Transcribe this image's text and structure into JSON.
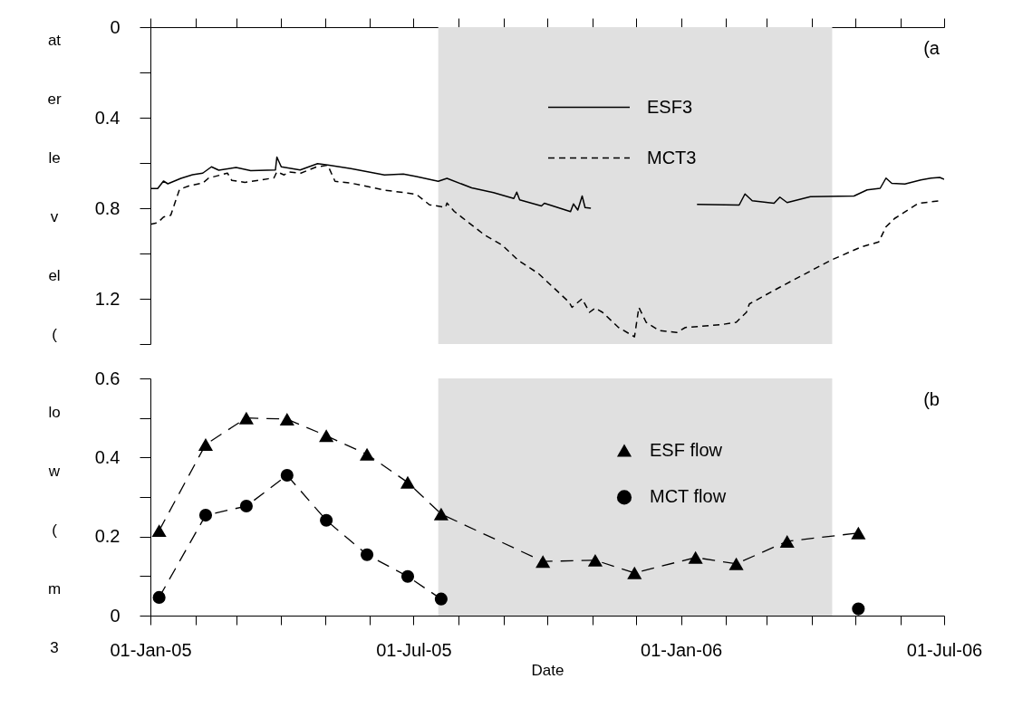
{
  "chart_data": [
    {
      "type": "line",
      "ylabel": "at\ner\nle\nv\nel\n(",
      "annotations": [
        "(a"
      ],
      "legend": "top",
      "tick_labels": "y",
      "xlim": [
        "2005-01-01",
        "2006-07-01"
      ],
      "xticks": [
        {
          "value": "2005-01-01",
          "label": null
        },
        {
          "value": "2005-02-01",
          "label": null
        },
        {
          "value": "2005-03-01",
          "label": null
        },
        {
          "value": "2005-04-01",
          "label": null
        },
        {
          "value": "2005-05-01",
          "label": null
        },
        {
          "value": "2005-06-01",
          "label": null
        },
        {
          "value": "2005-07-01",
          "label": null
        },
        {
          "value": "2005-08-01",
          "label": null
        },
        {
          "value": "2005-09-01",
          "label": null
        },
        {
          "value": "2005-10-01",
          "label": null
        },
        {
          "value": "2005-11-01",
          "label": null
        },
        {
          "value": "2005-12-01",
          "label": null
        },
        {
          "value": "2006-01-01",
          "label": null
        },
        {
          "value": "2006-02-01",
          "label": null
        },
        {
          "value": "2006-03-01",
          "label": null
        },
        {
          "value": "2006-04-01",
          "label": null
        },
        {
          "value": "2006-05-01",
          "label": null
        },
        {
          "value": "2006-06-01",
          "label": null
        },
        {
          "value": "2006-07-01",
          "label": null
        }
      ],
      "ylim": [
        1.4,
        0
      ],
      "yticks": [
        0,
        {
          "value": 0.2,
          "label": null
        },
        0.4,
        {
          "value": 0.6,
          "label": null
        },
        0.8,
        {
          "value": 1.0,
          "label": null
        },
        1.2,
        {
          "value": 1.4,
          "label": null
        }
      ],
      "bands": [
        {
          "axis": "x",
          "from": "2005-07-18",
          "to": "2006-04-15",
          "color": "#e0e0e0"
        }
      ],
      "series": [
        {
          "name": "ESF3",
          "color": "#000000",
          "line_style": "solid",
          "x": [
            "2005-01-01",
            "2005-01-06",
            "2005-01-10",
            "2005-01-13",
            "2005-01-22",
            "2005-01-30",
            "2005-02-06",
            "2005-02-12",
            "2005-02-17",
            "2005-03-01",
            "2005-03-11",
            "2005-03-28",
            "2005-03-29",
            "2005-04-01",
            "2005-04-14",
            "2005-04-26",
            "2005-05-04",
            "2005-05-19",
            "2005-06-11",
            "2005-06-24",
            "2005-07-03",
            "2005-07-18",
            "2005-07-24",
            "2005-08-10",
            "2005-08-25",
            "2005-09-08",
            "2005-09-10",
            "2005-09-12",
            "2005-09-27",
            "2005-09-29",
            "2005-10-17",
            "2005-10-19",
            "2005-10-22",
            "2005-10-25",
            "2005-10-27",
            "2005-10-31",
            "2005-12-01",
            "2006-01-12",
            "2006-02-10",
            "2006-02-14",
            "2006-02-19",
            "2006-03-06",
            "2006-03-10",
            "2006-03-15",
            "2006-03-31",
            "2006-04-30",
            "2006-05-09",
            "2006-05-18",
            "2006-05-22",
            "2006-05-26",
            "2006-06-04",
            "2006-06-15",
            "2006-06-22",
            "2006-06-28",
            "2006-07-01"
          ],
          "values": [
            0.713,
            0.713,
            0.68,
            0.692,
            0.668,
            0.652,
            0.645,
            0.617,
            0.632,
            0.62,
            0.634,
            0.631,
            0.574,
            0.617,
            0.631,
            0.603,
            0.61,
            0.625,
            0.653,
            0.649,
            0.66,
            0.681,
            0.668,
            0.71,
            0.731,
            0.757,
            0.729,
            0.763,
            0.79,
            0.778,
            0.815,
            0.781,
            0.808,
            0.746,
            0.797,
            0.8,
            null,
            0.783,
            0.786,
            0.737,
            0.767,
            0.778,
            0.751,
            0.775,
            0.749,
            0.746,
            0.719,
            0.712,
            0.667,
            0.69,
            0.693,
            0.675,
            0.667,
            0.664,
            0.672
          ]
        },
        {
          "name": "MCT3",
          "color": "#000000",
          "line_style": "dashed",
          "x": [
            "2005-01-01",
            "2005-01-06",
            "2005-01-10",
            "2005-01-15",
            "2005-01-21",
            "2005-01-28",
            "2005-02-06",
            "2005-02-10",
            "2005-02-23",
            "2005-02-26",
            "2005-03-07",
            "2005-03-27",
            "2005-03-29",
            "2005-04-03",
            "2005-04-06",
            "2005-04-14",
            "2005-04-25",
            "2005-05-03",
            "2005-05-08",
            "2005-05-19",
            "2005-06-11",
            "2005-06-28",
            "2005-07-03",
            "2005-07-12",
            "2005-07-23",
            "2005-07-24",
            "2005-07-29",
            "2005-08-19",
            "2005-08-31",
            "2005-09-11",
            "2005-09-25",
            "2005-10-16",
            "2005-10-18",
            "2005-10-25",
            "2005-10-30",
            "2005-11-03",
            "2005-11-08",
            "2005-11-19",
            "2005-11-30",
            "2005-12-03",
            "2005-12-08",
            "2005-12-17",
            "2005-12-29",
            "2006-01-04",
            "2006-01-28",
            "2006-02-08",
            "2006-02-15",
            "2006-02-17",
            "2006-03-10",
            "2006-04-14",
            "2006-05-05",
            "2006-05-17",
            "2006-05-22",
            "2006-05-28",
            "2006-06-13",
            "2006-06-28"
          ],
          "values": [
            0.871,
            0.864,
            0.839,
            0.831,
            0.717,
            0.7,
            0.689,
            0.667,
            0.645,
            0.677,
            0.686,
            0.666,
            0.639,
            0.653,
            0.639,
            0.646,
            0.618,
            0.61,
            0.681,
            0.689,
            0.72,
            0.734,
            0.739,
            0.785,
            0.796,
            0.777,
            0.814,
            0.919,
            0.963,
            1.03,
            1.089,
            1.215,
            1.238,
            1.2,
            1.26,
            1.241,
            1.26,
            1.327,
            1.368,
            1.238,
            1.304,
            1.341,
            1.349,
            1.327,
            1.315,
            1.304,
            1.26,
            1.223,
            1.149,
            1.03,
            0.971,
            0.949,
            0.882,
            0.845,
            0.779,
            0.767
          ]
        }
      ]
    },
    {
      "type": "line",
      "ylabel": "lo\nw\n(\nm\n3",
      "xlabel": "Date",
      "annotations": [
        "(b"
      ],
      "legend": "top",
      "xlim": [
        "2005-01-01",
        "2006-07-01"
      ],
      "xticks": [
        {
          "value": "2005-01-01",
          "label": "01-Jan-05"
        },
        {
          "value": "2005-02-01",
          "label": null
        },
        {
          "value": "2005-03-01",
          "label": null
        },
        {
          "value": "2005-04-01",
          "label": null
        },
        {
          "value": "2005-05-01",
          "label": null
        },
        {
          "value": "2005-06-01",
          "label": null
        },
        {
          "value": "2005-07-01",
          "label": "01-Jul-05"
        },
        {
          "value": "2005-08-01",
          "label": null
        },
        {
          "value": "2005-09-01",
          "label": null
        },
        {
          "value": "2005-10-01",
          "label": null
        },
        {
          "value": "2005-11-01",
          "label": null
        },
        {
          "value": "2005-12-01",
          "label": null
        },
        {
          "value": "2006-01-01",
          "label": "01-Jan-06"
        },
        {
          "value": "2006-02-01",
          "label": null
        },
        {
          "value": "2006-03-01",
          "label": null
        },
        {
          "value": "2006-04-01",
          "label": null
        },
        {
          "value": "2006-05-01",
          "label": null
        },
        {
          "value": "2006-06-01",
          "label": null
        },
        {
          "value": "2006-07-01",
          "label": "01-Jul-06"
        }
      ],
      "ylim": [
        0,
        0.6
      ],
      "yticks": [
        0,
        {
          "value": 0.1,
          "label": null
        },
        0.2,
        {
          "value": 0.3,
          "label": null
        },
        0.4,
        {
          "value": 0.5,
          "label": null
        },
        0.6
      ],
      "bands": [
        {
          "axis": "x",
          "from": "2005-07-18",
          "to": "2006-04-15",
          "color": "#e0e0e0"
        }
      ],
      "x": [
        "2005-01-07",
        "2005-02-08",
        "2005-03-08",
        "2005-04-05",
        "2005-05-02",
        "2005-05-30",
        "2005-06-27",
        "2005-07-20",
        "2005-09-28",
        "2005-11-03",
        "2005-11-30",
        "2006-01-11",
        "2006-02-08",
        "2006-03-15",
        "2006-05-03"
      ],
      "series": [
        {
          "name": "ESF flow",
          "color": "#000000",
          "line_style": "dashed",
          "marker": "triangle",
          "values": [
            0.215,
            0.433,
            0.5,
            0.497,
            0.455,
            0.408,
            0.337,
            0.257,
            0.137,
            0.14,
            0.108,
            0.147,
            0.131,
            0.188,
            0.209
          ]
        },
        {
          "name": "MCT flow",
          "color": "#000000",
          "line_style": "dashed",
          "marker": "circle",
          "values": [
            0.046,
            0.254,
            0.277,
            0.355,
            0.241,
            0.154,
            0.099,
            0.042,
            null,
            null,
            null,
            null,
            null,
            null,
            0.017
          ]
        }
      ]
    }
  ]
}
